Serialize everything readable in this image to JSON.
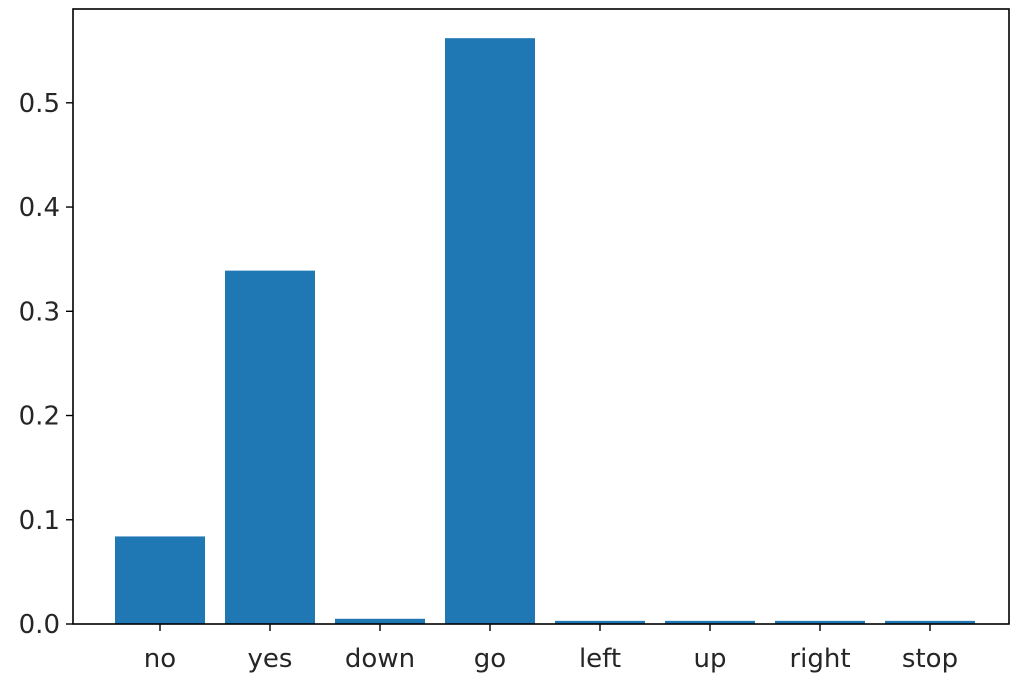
{
  "chart_data": {
    "type": "bar",
    "title": "",
    "xlabel": "",
    "ylabel": "",
    "categories": [
      "no",
      "yes",
      "down",
      "go",
      "left",
      "up",
      "right",
      "stop"
    ],
    "values": [
      0.084,
      0.339,
      0.005,
      0.562,
      0.003,
      0.003,
      0.003,
      0.003
    ],
    "ylim": [
      0,
      0.59
    ],
    "yticks": [
      0.0,
      0.1,
      0.2,
      0.3,
      0.4,
      0.5
    ],
    "ytick_labels": [
      "0.0",
      "0.1",
      "0.2",
      "0.3",
      "0.4",
      "0.5"
    ],
    "bar_color": "#1f77b4",
    "grid": false,
    "legend": "none"
  }
}
